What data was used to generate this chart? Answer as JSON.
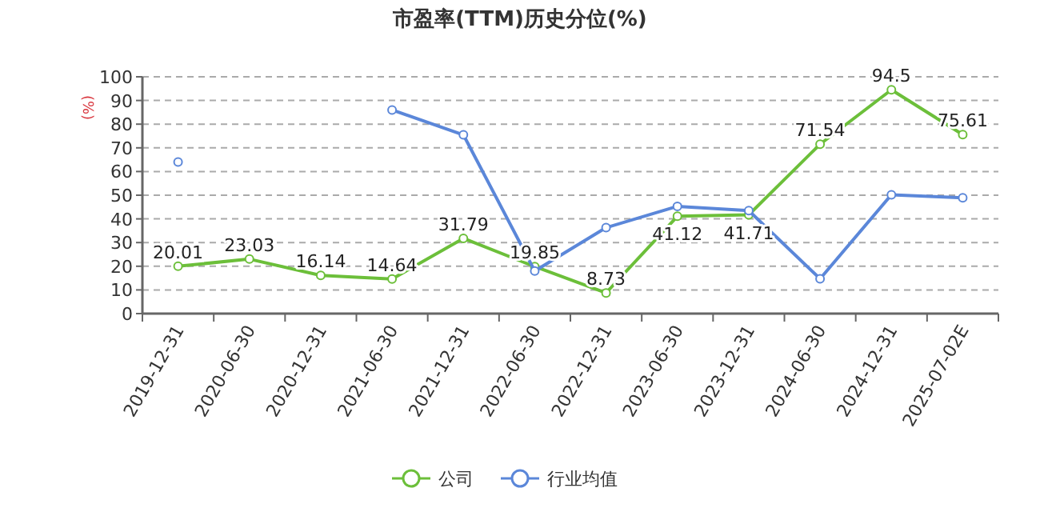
{
  "chart_data": {
    "type": "line",
    "title": "市盈率(TTM)历史分位(%)",
    "ylabel": "(%)",
    "categories": [
      "2019-12-31",
      "2020-06-30",
      "2020-12-31",
      "2021-06-30",
      "2021-12-31",
      "2022-06-30",
      "2022-12-31",
      "2023-06-30",
      "2023-12-31",
      "2024-06-30",
      "2024-12-31",
      "2025-07-02E"
    ],
    "series": [
      {
        "name": "公司",
        "color": "#6cbf3a",
        "values": [
          20.01,
          23.03,
          16.14,
          14.64,
          31.79,
          19.85,
          8.73,
          41.12,
          41.71,
          71.54,
          94.5,
          75.61
        ],
        "value_labels": [
          "20.01",
          "23.03",
          "16.14",
          "14.64",
          "31.79",
          "19.85",
          "8.73",
          "41.12",
          "41.71",
          "71.54",
          "94.5",
          "75.61"
        ]
      },
      {
        "name": "行业均值",
        "color": "#5b87d9",
        "values": [
          64,
          null,
          null,
          86,
          75.5,
          18,
          36.3,
          45.3,
          43.5,
          14.7,
          50.2,
          48.9
        ]
      }
    ],
    "ylim": [
      0,
      100
    ],
    "yticks": [
      0,
      10,
      20,
      30,
      40,
      50,
      60,
      70,
      80,
      90,
      100
    ],
    "grid": "y",
    "legend": "bottom",
    "marker": "circle",
    "line_style": "solid"
  }
}
